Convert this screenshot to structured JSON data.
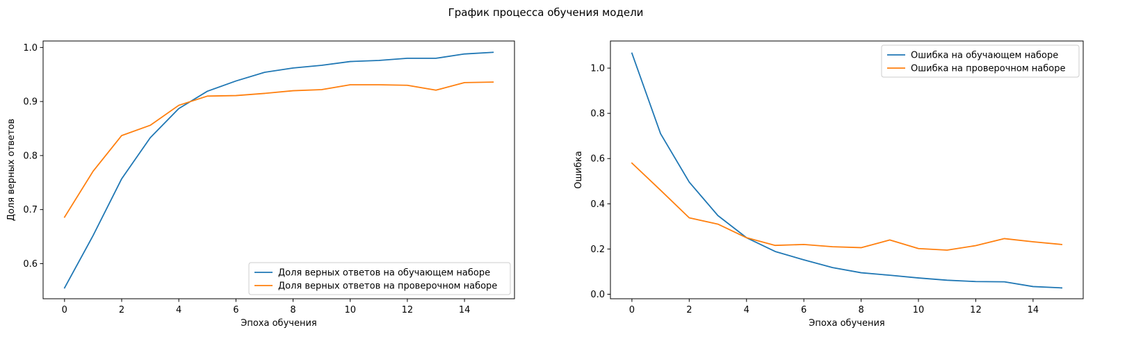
{
  "figure": {
    "suptitle": "График процесса обучения модели"
  },
  "chart_data": [
    {
      "type": "line",
      "title": "",
      "xlabel": "Эпоха обучения",
      "ylabel": "Доля верных ответов",
      "xlim": [
        -0.75,
        15.75
      ],
      "ylim": [
        0.535,
        1.012
      ],
      "xticks": [
        0,
        2,
        4,
        6,
        8,
        10,
        12,
        14
      ],
      "yticks": [
        0.6,
        0.7,
        0.8,
        0.9,
        1.0
      ],
      "ytick_labels": [
        "0.6",
        "0.7",
        "0.8",
        "0.9",
        "1.0"
      ],
      "grid": false,
      "legend_position": "lower-right",
      "x": [
        0,
        1,
        2,
        3,
        4,
        5,
        6,
        7,
        8,
        9,
        10,
        11,
        12,
        13,
        14,
        15
      ],
      "series": [
        {
          "name": "Доля верных ответов на обучающем наборе",
          "color": "#1f77b4",
          "values": [
            0.555,
            0.652,
            0.757,
            0.833,
            0.887,
            0.919,
            0.938,
            0.954,
            0.962,
            0.967,
            0.974,
            0.976,
            0.98,
            0.98,
            0.988,
            0.991
          ]
        },
        {
          "name": "Доля верных ответов на проверочном наборе",
          "color": "#ff7f0e",
          "values": [
            0.686,
            0.771,
            0.837,
            0.856,
            0.893,
            0.91,
            0.911,
            0.915,
            0.92,
            0.922,
            0.931,
            0.931,
            0.93,
            0.921,
            0.935,
            0.936
          ]
        }
      ]
    },
    {
      "type": "line",
      "title": "",
      "xlabel": "Эпоха обучения",
      "ylabel": "Ошибка",
      "xlim": [
        -0.75,
        15.75
      ],
      "ylim": [
        -0.02,
        1.12
      ],
      "xticks": [
        0,
        2,
        4,
        6,
        8,
        10,
        12,
        14
      ],
      "yticks": [
        0.0,
        0.2,
        0.4,
        0.6,
        0.8,
        1.0
      ],
      "ytick_labels": [
        "0.0",
        "0.2",
        "0.4",
        "0.6",
        "0.8",
        "1.0"
      ],
      "grid": false,
      "legend_position": "upper-right",
      "x": [
        0,
        1,
        2,
        3,
        4,
        5,
        6,
        7,
        8,
        9,
        10,
        11,
        12,
        13,
        14,
        15
      ],
      "series": [
        {
          "name": "Ошибка на обучающем наборе",
          "color": "#1f77b4",
          "values": [
            1.066,
            0.71,
            0.496,
            0.348,
            0.25,
            0.189,
            0.152,
            0.118,
            0.095,
            0.084,
            0.072,
            0.062,
            0.056,
            0.055,
            0.034,
            0.028
          ]
        },
        {
          "name": "Ошибка на проверочном наборе",
          "color": "#ff7f0e",
          "values": [
            0.58,
            0.46,
            0.338,
            0.31,
            0.25,
            0.216,
            0.22,
            0.21,
            0.206,
            0.24,
            0.202,
            0.195,
            0.215,
            0.246,
            0.232,
            0.22
          ]
        }
      ]
    }
  ]
}
